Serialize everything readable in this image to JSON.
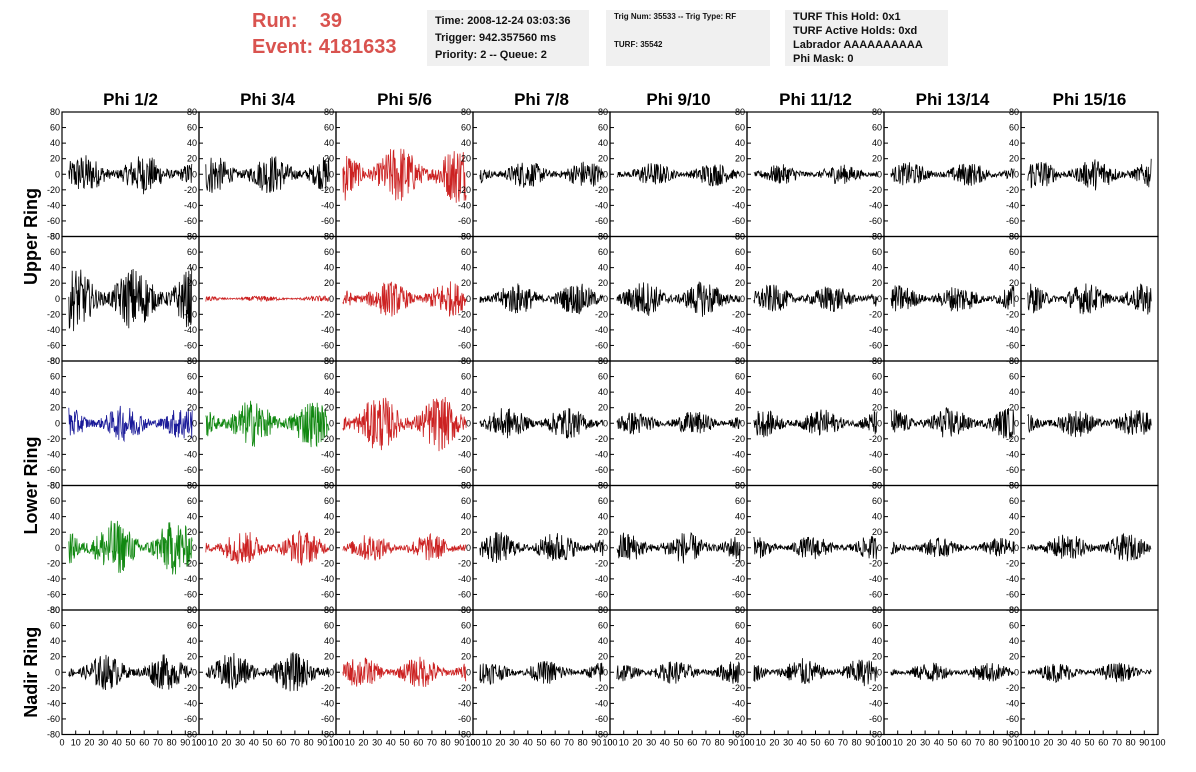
{
  "header": {
    "run_label": "Run:",
    "run_value": "39",
    "event_label": "Event:",
    "event_value": "4181633"
  },
  "time_box": {
    "time": "Time: 2008-12-24 03:03:36",
    "trigger": "Trigger: 942.357560 ms",
    "priority": "Priority: 2 -- Queue: 2"
  },
  "trig_box": {
    "trig_line": "Trig Num: 35533 -- Trig Type: RF",
    "turf_line": "TURF: 35542"
  },
  "turf_box": {
    "this_hold": "TURF This Hold: 0x1",
    "active_holds": "TURF Active Holds: 0xd",
    "labrador": "Labrador AAAAAAAAAA",
    "phi_mask": "Phi Mask: 0"
  },
  "colors": {
    "black": "#000000",
    "red": "#cc2222",
    "blue": "#1a1a99",
    "green": "#118811"
  },
  "chart_data": {
    "type": "line",
    "columns": [
      "Phi 1/2",
      "Phi 3/4",
      "Phi 5/6",
      "Phi 7/8",
      "Phi 9/10",
      "Phi 11/12",
      "Phi 13/14",
      "Phi 15/16"
    ],
    "row_groups": [
      {
        "label": "Upper Ring",
        "rows": [
          0,
          1
        ]
      },
      {
        "label": "Lower Ring",
        "rows": [
          2,
          3
        ]
      },
      {
        "label": "Nadir Ring",
        "rows": [
          4
        ]
      }
    ],
    "xlim": [
      0,
      100
    ],
    "ylim": [
      -80,
      80
    ],
    "x_ticks": [
      0,
      10,
      20,
      30,
      40,
      50,
      60,
      70,
      80,
      90,
      100
    ],
    "x_tick_labels": [
      "0",
      "10",
      "20",
      "30",
      "40",
      "50",
      "60",
      "70",
      "80",
      "90",
      "100"
    ],
    "y_ticks": [
      -80,
      -60,
      -40,
      -20,
      0,
      20,
      40,
      60,
      80
    ],
    "y_tick_labels": [
      "-80",
      "-60",
      "-40",
      "-20",
      "0",
      "20",
      "40",
      "60",
      "80"
    ],
    "series_color": [
      [
        "black",
        "black",
        "red",
        "black",
        "black",
        "black",
        "black",
        "black"
      ],
      [
        "black",
        "red",
        "red",
        "black",
        "black",
        "black",
        "black",
        "black"
      ],
      [
        "blue",
        "green",
        "red",
        "black",
        "black",
        "black",
        "black",
        "black"
      ],
      [
        "green",
        "red",
        "red",
        "black",
        "black",
        "black",
        "black",
        "black"
      ],
      [
        "black",
        "black",
        "red",
        "black",
        "black",
        "black",
        "black",
        "black"
      ]
    ],
    "amplitude": [
      [
        20,
        20,
        30,
        14,
        12,
        10,
        12,
        16
      ],
      [
        32,
        3,
        18,
        16,
        18,
        14,
        14,
        16
      ],
      [
        18,
        24,
        28,
        16,
        12,
        14,
        16,
        14
      ],
      [
        28,
        18,
        14,
        16,
        16,
        12,
        10,
        14
      ],
      [
        18,
        20,
        16,
        12,
        12,
        14,
        10,
        10
      ]
    ]
  }
}
